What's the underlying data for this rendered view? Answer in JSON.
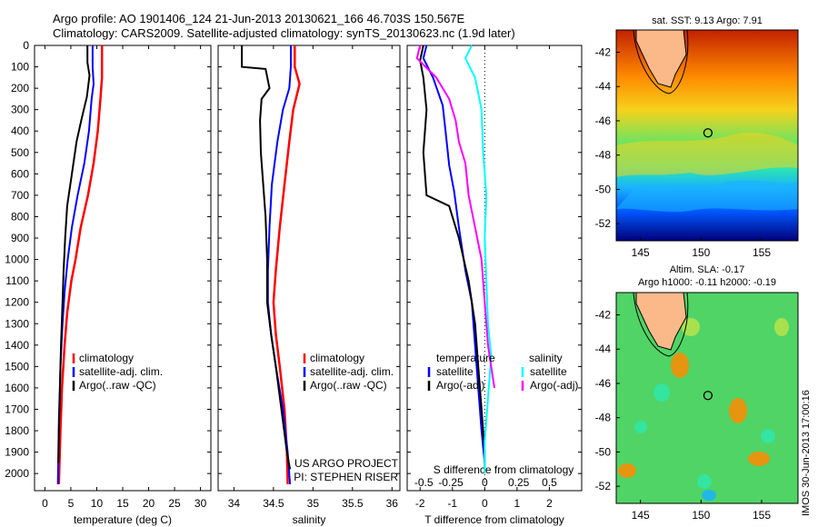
{
  "header": {
    "line1": "Argo profile: AO 1901406_124 21-Jun-2013 20130621_166 46.703S 150.567E",
    "line2": "Climatology: CARS2009. Satellite-adjusted climatology: synTS_20130623.nc (1.9d later)"
  },
  "colors": {
    "clim": "#ff0000",
    "sat": "#0000ff",
    "argo": "#000000",
    "sat_s": "#00ffff",
    "argo_s": "#ff00ff"
  },
  "chart_data": [
    {
      "type": "line",
      "id": "temperature",
      "xlabel": "temperature (deg C)",
      "xlim": [
        -2,
        32
      ],
      "xticks": [
        0,
        5,
        10,
        15,
        20,
        25,
        30
      ],
      "ylim": [
        0,
        2080
      ],
      "yticks": [
        0,
        100,
        200,
        300,
        400,
        500,
        600,
        700,
        800,
        900,
        1000,
        1100,
        1200,
        1300,
        1400,
        1500,
        1600,
        1700,
        1800,
        1900,
        2000
      ],
      "legend": [
        "climatology",
        "satellite-adj. clim.",
        "Argo(..raw -QC)"
      ],
      "legend_position": "lower-right",
      "series": [
        {
          "name": "climatology",
          "color": "#ff0000",
          "points": [
            [
              11,
              0
            ],
            [
              11,
              150
            ],
            [
              10.7,
              250
            ],
            [
              10.2,
              400
            ],
            [
              9.4,
              550
            ],
            [
              8.3,
              700
            ],
            [
              6.9,
              850
            ],
            [
              5.9,
              1000
            ],
            [
              5.1,
              1100
            ],
            [
              4.3,
              1250
            ],
            [
              3.8,
              1400
            ],
            [
              3.3,
              1600
            ],
            [
              3.0,
              1800
            ],
            [
              2.7,
              2050
            ]
          ]
        },
        {
          "name": "satellite-adj. clim.",
          "color": "#0000ff",
          "points": [
            [
              9.2,
              0
            ],
            [
              9.2,
              100
            ],
            [
              9.4,
              180
            ],
            [
              9.0,
              250
            ],
            [
              8.5,
              400
            ],
            [
              7.6,
              550
            ],
            [
              6.3,
              700
            ],
            [
              5.2,
              850
            ],
            [
              4.4,
              1000
            ],
            [
              3.8,
              1150
            ],
            [
              3.4,
              1300
            ],
            [
              3.0,
              1500
            ],
            [
              2.7,
              1750
            ],
            [
              2.5,
              2050
            ]
          ]
        },
        {
          "name": "Argo(..raw -QC)",
          "color": "#000000",
          "points": [
            [
              8.2,
              0
            ],
            [
              8.2,
              80
            ],
            [
              8.6,
              140
            ],
            [
              8.1,
              240
            ],
            [
              7.0,
              350
            ],
            [
              6.1,
              450
            ],
            [
              5.2,
              600
            ],
            [
              4.3,
              750
            ],
            [
              3.9,
              900
            ],
            [
              3.6,
              1050
            ],
            [
              3.4,
              1200
            ],
            [
              3.1,
              1400
            ],
            [
              2.9,
              1600
            ],
            [
              2.7,
              1800
            ],
            [
              2.6,
              1950
            ]
          ]
        }
      ]
    },
    {
      "type": "line",
      "id": "salinity",
      "xlabel": "salinity",
      "xlim": [
        33.8,
        36.1
      ],
      "xticks": [
        34,
        34.5,
        35,
        35.5,
        36
      ],
      "ylim": [
        0,
        2080
      ],
      "legend": [
        "climatology",
        "satellite-adj. clim.",
        "Argo(..raw -QC)"
      ],
      "legend_position": "lower-right",
      "credit": [
        "US ARGO PROJECT",
        "PI: STEPHEN RISER"
      ],
      "series": [
        {
          "name": "climatology",
          "color": "#ff0000",
          "points": [
            [
              34.77,
              0
            ],
            [
              34.77,
              100
            ],
            [
              34.83,
              180
            ],
            [
              34.75,
              300
            ],
            [
              34.7,
              450
            ],
            [
              34.64,
              650
            ],
            [
              34.58,
              850
            ],
            [
              34.53,
              1050
            ],
            [
              34.5,
              1200
            ],
            [
              34.53,
              1350
            ],
            [
              34.58,
              1500
            ],
            [
              34.64,
              1700
            ],
            [
              34.67,
              1900
            ],
            [
              34.68,
              2050
            ]
          ]
        },
        {
          "name": "satellite-adj. clim.",
          "color": "#0000ff",
          "points": [
            [
              34.72,
              0
            ],
            [
              34.72,
              100
            ],
            [
              34.7,
              200
            ],
            [
              34.62,
              300
            ],
            [
              34.55,
              450
            ],
            [
              34.48,
              650
            ],
            [
              34.45,
              850
            ],
            [
              34.43,
              1050
            ],
            [
              34.43,
              1200
            ],
            [
              34.47,
              1350
            ],
            [
              34.53,
              1500
            ],
            [
              34.62,
              1700
            ],
            [
              34.68,
              1900
            ],
            [
              34.71,
              2050
            ]
          ]
        },
        {
          "name": "Argo(..raw -QC)",
          "color": "#000000",
          "points": [
            [
              34.1,
              0
            ],
            [
              34.1,
              100
            ],
            [
              34.4,
              110
            ],
            [
              34.45,
              200
            ],
            [
              34.35,
              250
            ],
            [
              34.33,
              350
            ],
            [
              34.34,
              500
            ],
            [
              34.37,
              650
            ],
            [
              34.4,
              800
            ],
            [
              34.42,
              1000
            ],
            [
              34.42,
              1200
            ],
            [
              34.47,
              1350
            ],
            [
              34.53,
              1500
            ],
            [
              34.6,
              1700
            ],
            [
              34.67,
              1900
            ],
            [
              34.71,
              1980
            ]
          ]
        }
      ]
    },
    {
      "type": "line",
      "id": "difference",
      "xlabel": "T difference from climatology",
      "xlim": [
        -2.4,
        3.0
      ],
      "xticks": [
        -2,
        -1,
        0,
        1,
        2
      ],
      "top_axis_label": "S difference from climatology",
      "top_ticks": [
        "-0.5",
        "-0.25",
        "0",
        "0.25",
        "0.5"
      ],
      "ylim": [
        0,
        2080
      ],
      "legend_left_title": "temperature",
      "legend_right_title": "salinity",
      "legend": [
        "satellite",
        "Argo(-adj)",
        "satellite",
        "Argo(-adj)"
      ],
      "legend_position": "lower",
      "series": [
        {
          "name": "satellite",
          "group": "temperature",
          "color": "#0000ff",
          "points": [
            [
              -1.8,
              0
            ],
            [
              -1.9,
              60
            ],
            [
              -1.6,
              150
            ],
            [
              -1.3,
              280
            ],
            [
              -1.2,
              420
            ],
            [
              -1.1,
              560
            ],
            [
              -0.95,
              680
            ],
            [
              -0.8,
              850
            ],
            [
              -0.6,
              1050
            ],
            [
              -0.4,
              1200
            ],
            [
              -0.3,
              1400
            ],
            [
              -0.2,
              1600
            ],
            [
              -0.1,
              1800
            ],
            [
              0.0,
              1950
            ]
          ]
        },
        {
          "name": "Argo(-adj)",
          "group": "temperature",
          "color": "#000000",
          "points": [
            [
              -1.9,
              0
            ],
            [
              -2.0,
              70
            ],
            [
              -1.9,
              150
            ],
            [
              -1.8,
              300
            ],
            [
              -1.9,
              500
            ],
            [
              -1.8,
              700
            ],
            [
              -1.1,
              750
            ],
            [
              -0.8,
              900
            ],
            [
              -0.5,
              1100
            ],
            [
              -0.3,
              1300
            ],
            [
              -0.2,
              1500
            ],
            [
              -0.1,
              1700
            ],
            [
              0.0,
              1900
            ],
            [
              0.0,
              1980
            ]
          ]
        },
        {
          "name": "satellite",
          "group": "salinity",
          "color": "#00ffff",
          "points": [
            [
              -0.4,
              0
            ],
            [
              -0.6,
              60
            ],
            [
              -0.3,
              150
            ],
            [
              -0.1,
              300
            ],
            [
              -0.05,
              500
            ],
            [
              0.05,
              700
            ],
            [
              0.0,
              900
            ],
            [
              0.05,
              1100
            ],
            [
              0.1,
              1300
            ],
            [
              0.2,
              1450
            ],
            [
              0.1,
              1650
            ],
            [
              0.0,
              1850
            ],
            [
              0.0,
              2000
            ]
          ]
        },
        {
          "name": "Argo(-adj)",
          "group": "salinity",
          "color": "#ff00ff",
          "points": [
            [
              -2.0,
              0
            ],
            [
              -2.1,
              60
            ],
            [
              -1.5,
              150
            ],
            [
              -1.1,
              250
            ],
            [
              -0.9,
              350
            ],
            [
              -0.8,
              450
            ],
            [
              -0.6,
              550
            ],
            [
              -0.5,
              700
            ],
            [
              -0.3,
              850
            ],
            [
              -0.1,
              1000
            ],
            [
              0.0,
              1200
            ],
            [
              0.1,
              1400
            ],
            [
              0.2,
              1500
            ],
            [
              0.3,
              1600
            ]
          ]
        }
      ]
    },
    {
      "type": "heatmap",
      "id": "sst-map",
      "title": "sat. SST: 9.13 Argo: 7.91",
      "xticks": [
        145,
        150,
        155
      ],
      "yticks": [
        -42,
        -44,
        -46,
        -48,
        -50,
        -52
      ],
      "xlim": [
        143,
        158
      ],
      "ylim": [
        -53,
        -40.7
      ],
      "marker": [
        150.567,
        -46.703
      ],
      "colormap": "jet",
      "gradient_stops": [
        [
          0,
          "#c22100"
        ],
        [
          0.22,
          "#ff8a00"
        ],
        [
          0.38,
          "#f5d21b"
        ],
        [
          0.52,
          "#79e25a"
        ],
        [
          0.65,
          "#2ee8a8"
        ],
        [
          0.75,
          "#1ab2ff"
        ],
        [
          0.86,
          "#0058ff"
        ],
        [
          1,
          "#00007a"
        ]
      ]
    },
    {
      "type": "heatmap",
      "id": "sla-map",
      "title": "Altim. SLA: -0.17",
      "subtitle": "Argo h1000: -0.11 h2000: -0.19",
      "xticks": [
        145,
        150,
        155
      ],
      "yticks": [
        -42,
        -44,
        -46,
        -48,
        -50,
        -52
      ],
      "xlim": [
        143,
        158
      ],
      "ylim": [
        -53,
        -40.7
      ],
      "marker": [
        150.567,
        -46.703
      ],
      "colormap": "jet",
      "background": "#50d466"
    }
  ],
  "side_text": "IMOS 30-Jun-2013 17:00:16"
}
